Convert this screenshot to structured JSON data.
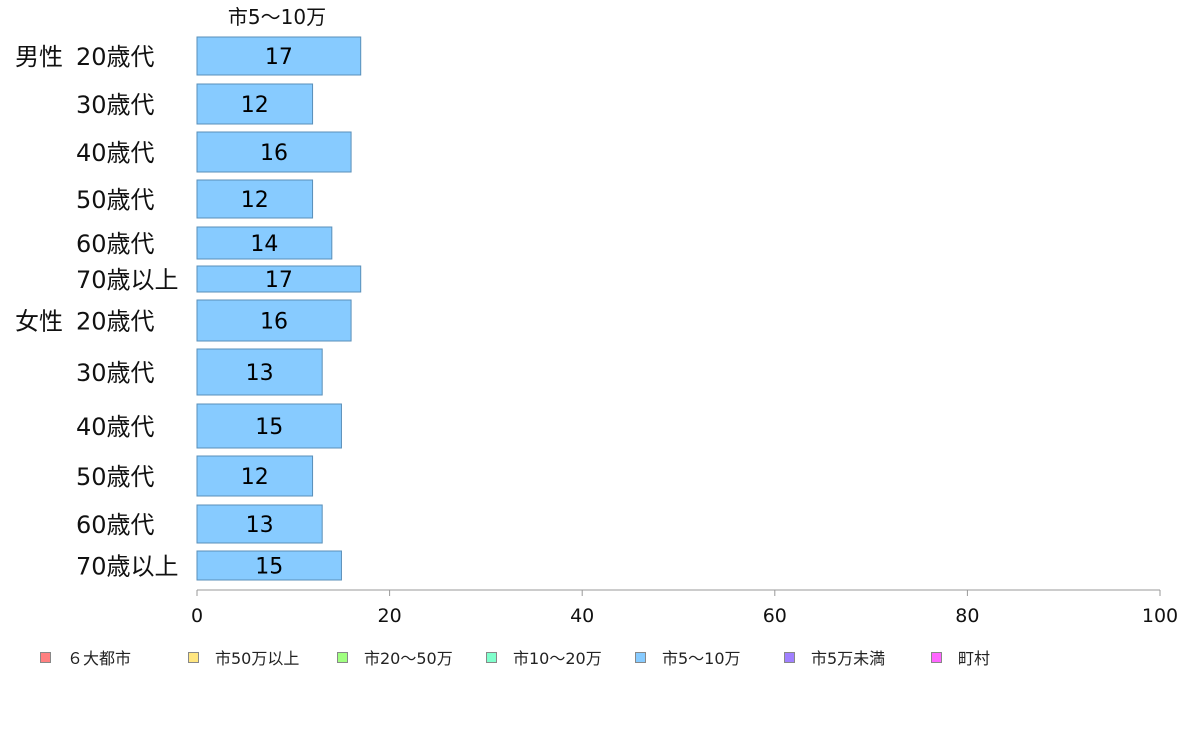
{
  "chart_data": {
    "type": "bar",
    "orientation": "horizontal",
    "title": "市5〜10万",
    "xlim": [
      0,
      100
    ],
    "x_ticks": [
      "0",
      "20",
      "40",
      "60",
      "80",
      "100"
    ],
    "grid": false,
    "legend_position": "bottom",
    "groups": [
      {
        "label": "男性",
        "categories": [
          "20歳代",
          "30歳代",
          "40歳代",
          "50歳代",
          "60歳代",
          "70歳以上"
        ],
        "values": [
          17,
          12,
          16,
          12,
          14,
          17
        ]
      },
      {
        "label": "女性",
        "categories": [
          "20歳代",
          "30歳代",
          "40歳代",
          "50歳代",
          "60歳代",
          "70歳以上"
        ],
        "values": [
          16,
          13,
          15,
          12,
          13,
          15
        ]
      }
    ],
    "series": [
      {
        "name": "市5〜10万",
        "color": "#87cbff"
      }
    ],
    "legend": [
      {
        "label": "６大都市",
        "color": "#ff8080"
      },
      {
        "label": "市50万以上",
        "color": "#ffe680"
      },
      {
        "label": "市20〜50万",
        "color": "#a0ff80"
      },
      {
        "label": "市10〜20万",
        "color": "#80ffcc"
      },
      {
        "label": "市5〜10万",
        "color": "#87cbff"
      },
      {
        "label": "市5万未満",
        "color": "#a080ff"
      },
      {
        "label": "町村",
        "color": "#ff66ff"
      }
    ]
  }
}
